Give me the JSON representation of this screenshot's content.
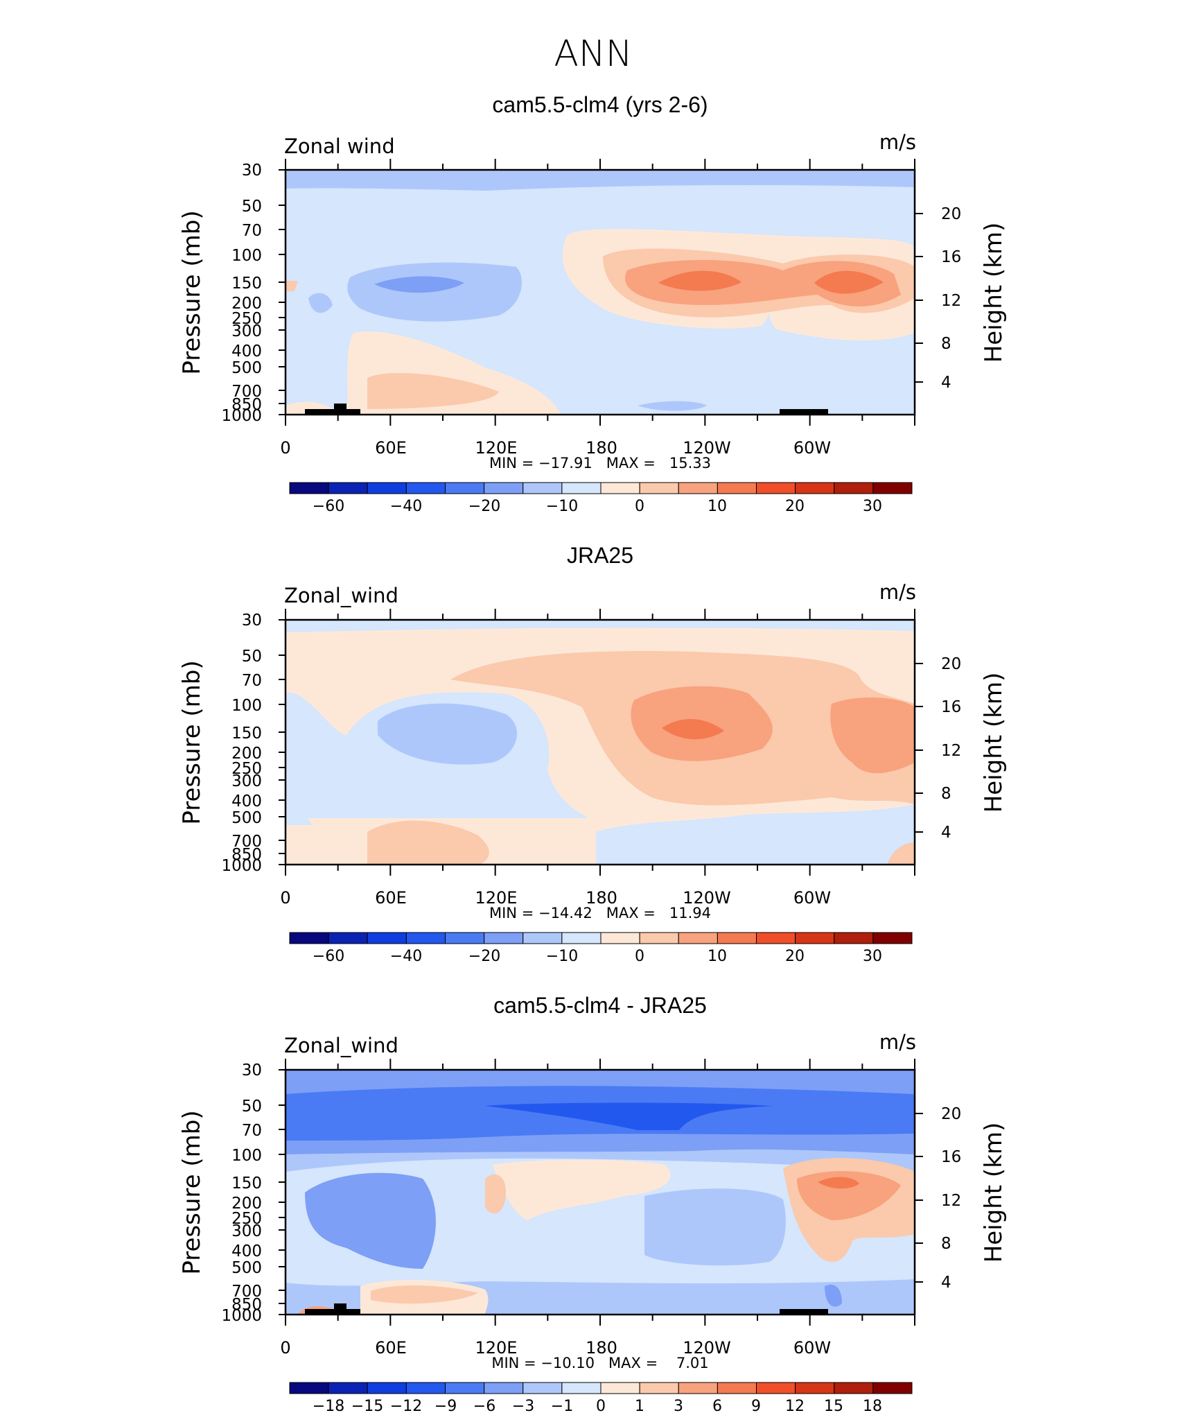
{
  "page": {
    "title": "ANN"
  },
  "chart_data": [
    {
      "type": "contour",
      "title": "cam5.5-clm4 (yrs 2-6)",
      "variable_label": "Zonal wind",
      "units": "m/s",
      "ylabel": "Pressure (mb)",
      "ylabel_right": "Height (km)",
      "x_tick_labels": [
        "0",
        "60E",
        "120E",
        "180",
        "120W",
        "60W"
      ],
      "y_tick_labels": [
        "30",
        "50",
        "70",
        "100",
        "150",
        "200",
        "250",
        "300",
        "400",
        "500",
        "700",
        "850",
        "1000"
      ],
      "y_right_tick_labels": [
        "20",
        "16",
        "12",
        "8",
        "4"
      ],
      "stats": "MIN = −17.91   MAX =   15.33",
      "min": -17.91,
      "max": 15.33,
      "colorbar_labels": [
        "−60",
        "−40",
        "−20",
        "−10",
        "0",
        "10",
        "20",
        "30"
      ]
    },
    {
      "type": "contour",
      "title": "JRA25",
      "variable_label": "Zonal_wind",
      "units": "m/s",
      "ylabel": "Pressure (mb)",
      "ylabel_right": "Height (km)",
      "x_tick_labels": [
        "0",
        "60E",
        "120E",
        "180",
        "120W",
        "60W"
      ],
      "y_tick_labels": [
        "30",
        "50",
        "70",
        "100",
        "150",
        "200",
        "250",
        "300",
        "400",
        "500",
        "700",
        "850",
        "1000"
      ],
      "y_right_tick_labels": [
        "20",
        "16",
        "12",
        "8",
        "4"
      ],
      "stats": "MIN = −14.42   MAX =   11.94",
      "min": -14.42,
      "max": 11.94,
      "colorbar_labels": [
        "−60",
        "−40",
        "−20",
        "−10",
        "0",
        "10",
        "20",
        "30"
      ]
    },
    {
      "type": "contour",
      "title": "cam5.5-clm4 - JRA25",
      "variable_label": "Zonal_wind",
      "units": "m/s",
      "ylabel": "Pressure (mb)",
      "ylabel_right": "Height (km)",
      "x_tick_labels": [
        "0",
        "60E",
        "120E",
        "180",
        "120W",
        "60W"
      ],
      "y_tick_labels": [
        "30",
        "50",
        "70",
        "100",
        "150",
        "200",
        "250",
        "300",
        "400",
        "500",
        "700",
        "850",
        "1000"
      ],
      "y_right_tick_labels": [
        "20",
        "16",
        "12",
        "8",
        "4"
      ],
      "stats": "MIN = −10.10   MAX =    7.01",
      "min": -10.1,
      "max": 7.01,
      "colorbar_labels": [
        "−18",
        "−15",
        "−12",
        "−9",
        "−6",
        "−3",
        "−1",
        "0",
        "1",
        "3",
        "6",
        "9",
        "12",
        "15",
        "18"
      ]
    }
  ],
  "colors": {
    "colorbar": [
      "#08087f",
      "#0a23b4",
      "#0f3ee0",
      "#2358ef",
      "#4a7bf5",
      "#7d9ff6",
      "#aec7fb",
      "#d5e6fd",
      "#fde8d8",
      "#fbc9ac",
      "#f8a27e",
      "#f47a50",
      "#f04f2a",
      "#d63616",
      "#af1f0b",
      "#800000"
    ]
  }
}
